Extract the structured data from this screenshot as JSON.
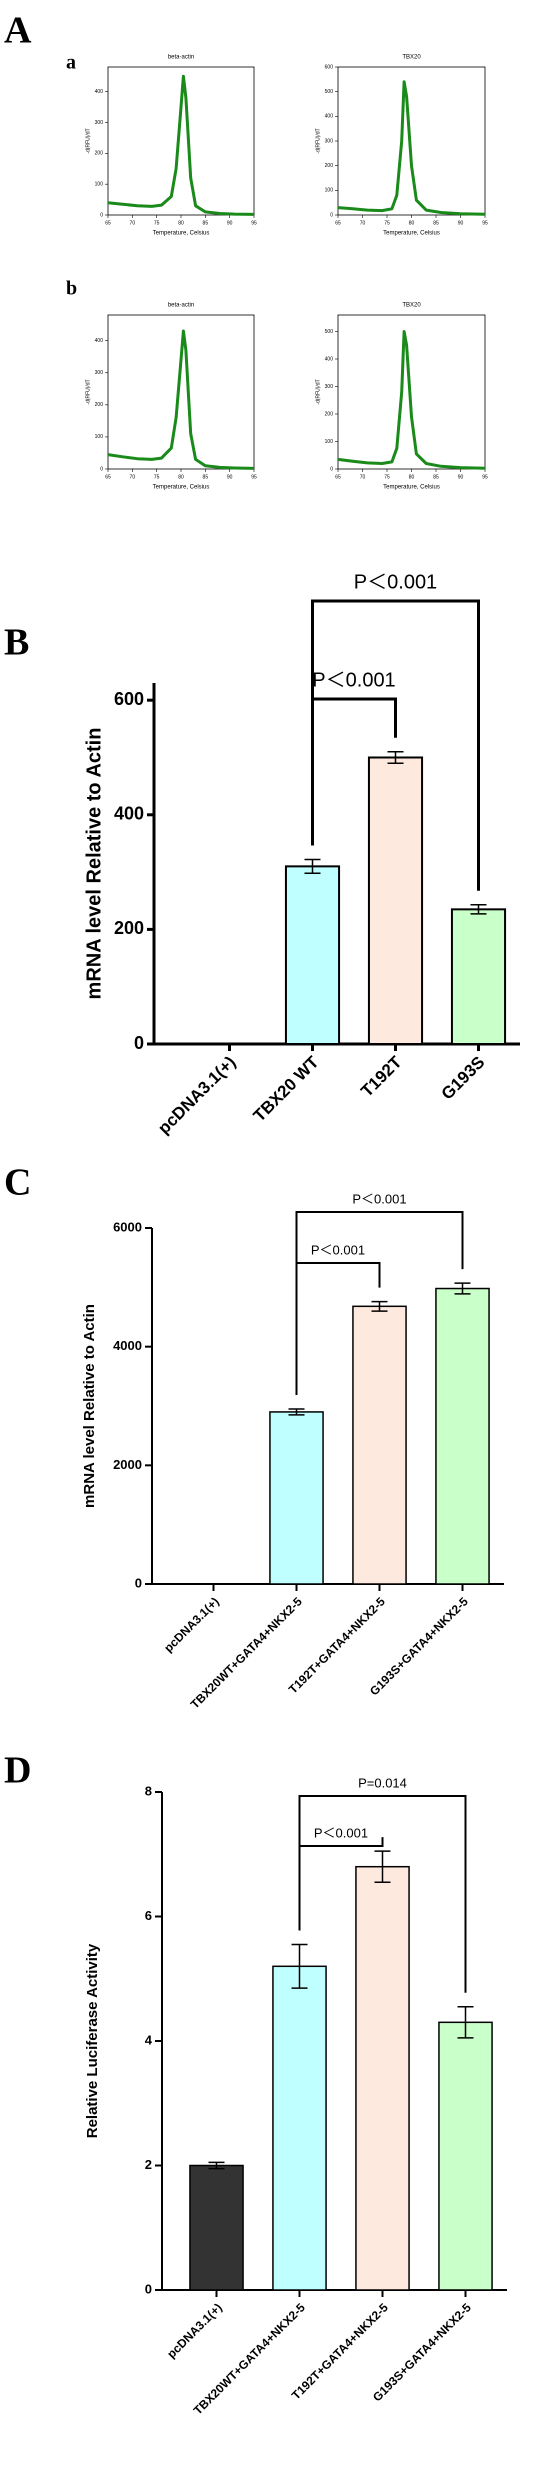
{
  "panel_labels": [
    "A",
    "a",
    "b",
    "B",
    "C",
    "D"
  ],
  "chart_data": [
    {
      "type": "line",
      "title": "beta-actin",
      "xlabel": "Temperature, Celsius",
      "ylabel": "-d(RFU)/dT",
      "x": [
        65,
        68,
        71,
        74,
        76,
        78,
        79,
        80,
        80.5,
        81,
        82,
        83,
        85,
        88,
        91,
        95
      ],
      "series": [
        {
          "color": "#1a8a1a",
          "values": [
            40,
            35,
            30,
            28,
            32,
            60,
            150,
            350,
            450,
            380,
            120,
            30,
            10,
            5,
            3,
            2
          ]
        }
      ],
      "xlim": [
        65,
        95
      ],
      "xticks": [
        65,
        70,
        75,
        80,
        85,
        90,
        95
      ],
      "ylim": [
        0,
        480
      ],
      "yticks": [
        0,
        100,
        200,
        300,
        400
      ]
    },
    {
      "type": "line",
      "title": "TBX20",
      "xlabel": "Temperature, Celsius",
      "ylabel": "-d(RFU)/dT",
      "x": [
        65,
        68,
        71,
        74,
        76,
        77,
        78,
        78.5,
        79,
        80,
        81,
        83,
        86,
        90,
        95
      ],
      "series": [
        {
          "color": "#1a8a1a",
          "values": [
            30,
            25,
            20,
            18,
            25,
            80,
            300,
            540,
            480,
            200,
            60,
            20,
            10,
            5,
            3
          ]
        }
      ],
      "xlim": [
        65,
        95
      ],
      "xticks": [
        65,
        70,
        75,
        80,
        85,
        90,
        95
      ],
      "ylim": [
        0,
        600
      ],
      "yticks": [
        0,
        100,
        200,
        300,
        400,
        500,
        600
      ]
    },
    {
      "type": "line",
      "title": "beta-actin",
      "xlabel": "Temperature, Celsius",
      "ylabel": "-d(RFU)/dT",
      "x": [
        65,
        68,
        71,
        74,
        76,
        78,
        79,
        80,
        80.5,
        81,
        82,
        83,
        85,
        88,
        91,
        95
      ],
      "series": [
        {
          "color": "#1a8a1a",
          "values": [
            45,
            38,
            32,
            30,
            34,
            65,
            160,
            340,
            430,
            370,
            110,
            30,
            10,
            5,
            3,
            2
          ]
        }
      ],
      "xlim": [
        65,
        95
      ],
      "xticks": [
        65,
        70,
        75,
        80,
        85,
        90,
        95
      ],
      "ylim": [
        0,
        480
      ],
      "yticks": [
        0,
        100,
        200,
        300,
        400
      ]
    },
    {
      "type": "line",
      "title": "TBX20",
      "xlabel": "Temperature, Celsius",
      "ylabel": "-d(RFU)/dT",
      "x": [
        65,
        68,
        71,
        74,
        76,
        77,
        78,
        78.5,
        79,
        80,
        81,
        83,
        86,
        90,
        95
      ],
      "series": [
        {
          "color": "#1a8a1a",
          "values": [
            35,
            28,
            22,
            20,
            26,
            75,
            280,
            500,
            450,
            190,
            55,
            20,
            10,
            5,
            3
          ]
        }
      ],
      "xlim": [
        65,
        95
      ],
      "xticks": [
        65,
        70,
        75,
        80,
        85,
        90,
        95
      ],
      "ylim": [
        0,
        560
      ],
      "yticks": [
        0,
        100,
        200,
        300,
        400,
        500
      ]
    },
    {
      "type": "bar",
      "ylabel": "mRNA level Relative to Actin",
      "categories": [
        "pcDNA3.1(+)",
        "TBX20 WT",
        "T192T",
        "G193S"
      ],
      "values": [
        0,
        310,
        500,
        235
      ],
      "errors": [
        0,
        12,
        10,
        8
      ],
      "colors": [
        "#333333",
        "#bfffff",
        "#fde9dd",
        "#c9ffc9"
      ],
      "ylim": [
        0,
        630
      ],
      "yticks": [
        0,
        200,
        400,
        600
      ],
      "annotations": [
        "P＜0.001",
        "P＜0.001"
      ]
    },
    {
      "type": "bar",
      "ylabel": "mRNA level Relative to Actin",
      "categories": [
        "pcDNA3.1(+)",
        "TBX20WT+GATA4+NKX2-5",
        "T192T+GATA4+NKX2-5",
        "G193S+GATA4+NKX2-5"
      ],
      "values": [
        0,
        2900,
        4680,
        4980
      ],
      "errors": [
        0,
        50,
        80,
        90
      ],
      "colors": [
        "#333333",
        "#bfffff",
        "#fde9dd",
        "#c9ffc9"
      ],
      "ylim": [
        0,
        6000
      ],
      "yticks": [
        0,
        2000,
        4000,
        6000
      ],
      "annotations": [
        "P＜0.001",
        "P＜0.001"
      ]
    },
    {
      "type": "bar",
      "ylabel": "Relative Luciferase Activity",
      "categories": [
        "pcDNA3.1(+)",
        "TBX20WT+GATA4+NKX2-5",
        "T192T+GATA4+NKX2-5",
        "G193S+GATA4+NKX2-5"
      ],
      "values": [
        2.0,
        5.2,
        6.8,
        4.3
      ],
      "errors": [
        0.05,
        0.35,
        0.25,
        0.25
      ],
      "colors": [
        "#333333",
        "#bfffff",
        "#fde9dd",
        "#c9ffc9"
      ],
      "ylim": [
        0,
        8
      ],
      "yticks": [
        0,
        2,
        4,
        6,
        8
      ],
      "annotations": [
        "P＜0.001",
        "P=0.014"
      ]
    }
  ]
}
